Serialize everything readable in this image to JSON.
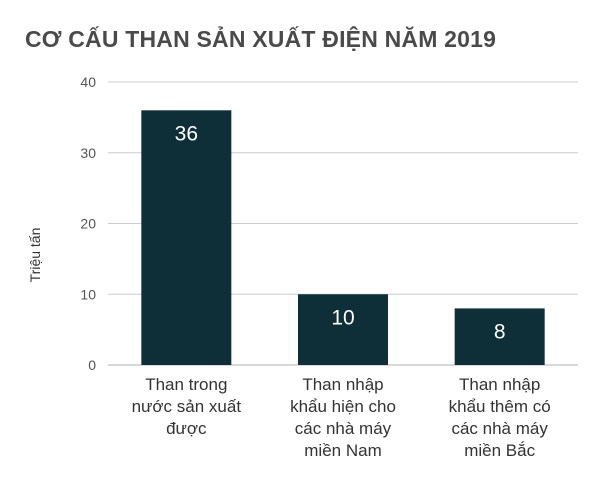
{
  "chart_data": {
    "type": "bar",
    "title": "CƠ CẤU THAN SẢN XUẤT ĐIỆN NĂM 2019",
    "ylabel": "Triệu tấn",
    "xlabel": "",
    "ylim": [
      0,
      40
    ],
    "yticks": [
      0,
      10,
      20,
      30,
      40
    ],
    "grid": true,
    "bar_color": "#0e2f38",
    "grid_color": "#cccccc",
    "categories": [
      [
        "Than trong",
        "nước sản xuất",
        "được"
      ],
      [
        "Than nhập",
        "khẩu hiện cho",
        "các nhà máy",
        "miền Nam"
      ],
      [
        "Than nhập",
        "khẩu thêm có",
        "các nhà máy",
        "miền Bắc"
      ]
    ],
    "values": [
      36,
      10,
      8
    ]
  }
}
